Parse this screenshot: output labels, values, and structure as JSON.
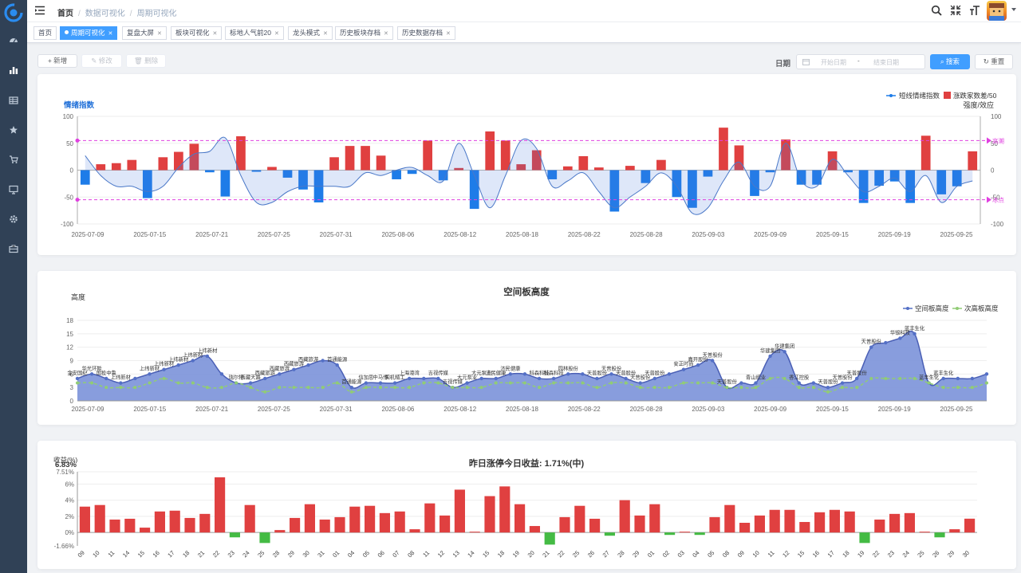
{
  "sidebar": {
    "items": [
      {
        "icon": "dashboard-icon"
      },
      {
        "icon": "bar-chart-icon"
      },
      {
        "icon": "table-icon"
      },
      {
        "icon": "star-icon"
      },
      {
        "icon": "cart-icon"
      },
      {
        "icon": "monitor-icon"
      },
      {
        "icon": "gear-icon"
      },
      {
        "icon": "briefcase-icon"
      }
    ]
  },
  "header": {
    "breadcrumb": [
      "首页",
      "数据可视化",
      "周期可视化"
    ]
  },
  "tabs": [
    {
      "label": "首页",
      "closable": false
    },
    {
      "label": "周期可视化",
      "closable": true,
      "active": true
    },
    {
      "label": "复盘大屏",
      "closable": true
    },
    {
      "label": "板块可视化",
      "closable": true
    },
    {
      "label": "标地人气前20",
      "closable": true
    },
    {
      "label": "龙头模式",
      "closable": true
    },
    {
      "label": "历史板块存档",
      "closable": true
    },
    {
      "label": "历史数据存档",
      "closable": true
    }
  ],
  "toolbar": {
    "add": "新增",
    "edit": "修改",
    "delete": "删除",
    "date_label": "日期",
    "start_placeholder": "开始日期",
    "range_sep": "-",
    "end_placeholder": "结束日期",
    "search": "搜索",
    "reset": "重置"
  },
  "colors": {
    "red": "#e04040",
    "blue": "#1e7ce8",
    "green": "#44bb44",
    "area": "#7b92d9",
    "magenta": "#e040e0"
  },
  "chart_data": [
    {
      "type": "bar+line",
      "ylabel_left": "情绪指数",
      "ylabel_right": "强度/效应",
      "legend": [
        "短线情绪指数",
        "涨跌家数差/50"
      ],
      "legend_position": "top-right",
      "ylim_left": [
        -100,
        100
      ],
      "ylim_right": [
        -100,
        100
      ],
      "yticks_left": [
        100,
        50,
        0,
        -50,
        -100
      ],
      "yticks_right": [
        100,
        50,
        0,
        -50,
        -100
      ],
      "markline_high": {
        "value": 55,
        "label": "高潮"
      },
      "markline_low": {
        "value": -55,
        "label": "冰点"
      },
      "x_ticks": [
        "2025-07-09",
        "2025-07-15",
        "2025-07-21",
        "2025-07-25",
        "2025-07-31",
        "2025-08-06",
        "2025-08-12",
        "2025-08-18",
        "2025-08-22",
        "2025-08-28",
        "2025-09-03",
        "2025-09-09",
        "2025-09-15",
        "2025-09-19",
        "2025-09-25"
      ],
      "bars": [
        -27,
        11,
        13,
        19,
        -52,
        24,
        34,
        49,
        -4,
        -49,
        63,
        -3,
        6,
        -14,
        -36,
        -60,
        24,
        45,
        45,
        27,
        -17,
        -7,
        55,
        -19,
        4,
        -72,
        72,
        55,
        11,
        37,
        -17,
        7,
        26,
        5,
        -77,
        8,
        -24,
        19,
        -50,
        -70,
        -12,
        79,
        46,
        -48,
        -4,
        57,
        -27,
        -27,
        35,
        -4,
        -61,
        -29,
        -21,
        -61,
        64,
        -45,
        -30,
        35
      ],
      "line": [
        27,
        -10,
        -30,
        -30,
        -40,
        -30,
        5,
        30,
        35,
        60,
        -10,
        -60,
        -60,
        -40,
        -30,
        -30,
        -30,
        -30,
        -5,
        -10,
        0,
        5,
        -10,
        -20,
        50,
        -10,
        -70,
        -10,
        55,
        40,
        -30,
        -20,
        -5,
        -40,
        -70,
        -50,
        -30,
        -5,
        -30,
        -80,
        -70,
        -20,
        15,
        -30,
        -30,
        50,
        -20,
        -30,
        20,
        -10,
        -40,
        -30,
        -15,
        -40,
        -10,
        -60,
        -30,
        -20
      ]
    },
    {
      "type": "area+line",
      "title": "空间板高度",
      "ylabel": "高度",
      "legend": [
        "空间板高度",
        "次高板高度"
      ],
      "legend_position": "top-right",
      "ylim": [
        0,
        18
      ],
      "yticks": [
        0,
        3,
        6,
        9,
        12,
        15,
        18
      ],
      "x_ticks": [
        "2025-07-09",
        "2025-07-15",
        "2025-07-21",
        "2025-07-25",
        "2025-07-31",
        "2025-08-06",
        "2025-08-12",
        "2025-08-18",
        "2025-08-22",
        "2025-08-28",
        "2025-09-03",
        "2025-09-09",
        "2025-09-15",
        "2025-09-19",
        "2025-09-25"
      ],
      "height": [
        5,
        6,
        5,
        4,
        5,
        6,
        7,
        8,
        9,
        10,
        6,
        4,
        4,
        5,
        6,
        7,
        8,
        9,
        8,
        3,
        4,
        4,
        4,
        5,
        5,
        5,
        3,
        4,
        5,
        5,
        6,
        6,
        5,
        5,
        6,
        6,
        5,
        6,
        5,
        4,
        5,
        6,
        7,
        8,
        9,
        3,
        4,
        4,
        10,
        11,
        4,
        4,
        3,
        4,
        5,
        12,
        13,
        14,
        15,
        4,
        5,
        5,
        5,
        6
      ],
      "second": [
        4,
        4,
        3,
        3,
        3,
        4,
        5,
        4,
        4,
        3,
        3,
        4,
        3,
        2,
        3,
        3,
        3,
        3,
        4,
        2,
        3,
        3,
        3,
        3,
        4,
        4,
        3,
        3,
        3,
        4,
        4,
        4,
        3,
        4,
        4,
        4,
        3,
        4,
        4,
        3,
        3,
        3,
        4,
        4,
        4,
        3,
        3,
        3,
        5,
        5,
        3,
        3,
        2,
        3,
        3,
        5,
        5,
        5,
        5,
        4,
        3,
        3,
        3,
        4
      ],
      "point_labels": [
        {
          "i": 0,
          "t": "金安国纪"
        },
        {
          "i": 1,
          "t": "华光环能"
        },
        {
          "i": 2,
          "t": "国投中鲁"
        },
        {
          "i": 3,
          "t": "上纬新材"
        },
        {
          "i": 5,
          "t": "上纬新材"
        },
        {
          "i": 6,
          "t": "上纬新材"
        },
        {
          "i": 7,
          "t": "上纬新材"
        },
        {
          "i": 8,
          "t": "上纬新材"
        },
        {
          "i": 9,
          "t": "上纬新材"
        },
        {
          "i": 11,
          "t": "瑞尔特"
        },
        {
          "i": 12,
          "t": "西藏天路"
        },
        {
          "i": 13,
          "t": "西藏旅游"
        },
        {
          "i": 14,
          "t": "西藏旅游"
        },
        {
          "i": 15,
          "t": "西藏旅游"
        },
        {
          "i": 16,
          "t": "西藏旅游"
        },
        {
          "i": 18,
          "t": "首通能源"
        },
        {
          "i": 19,
          "t": "首通能源"
        },
        {
          "i": 20,
          "t": "信加思"
        },
        {
          "i": 21,
          "t": "中马传"
        },
        {
          "i": 22,
          "t": "国机精工"
        },
        {
          "i": 23,
          "t": "上海港湾"
        },
        {
          "i": 25,
          "t": "吉视传媒"
        },
        {
          "i": 26,
          "t": "吉视传媒"
        },
        {
          "i": 27,
          "t": "大元泵业"
        },
        {
          "i": 28,
          "t": "大元泵业"
        },
        {
          "i": 29,
          "t": "济民健康"
        },
        {
          "i": 30,
          "t": "济民健康"
        },
        {
          "i": 32,
          "t": "科森科技"
        },
        {
          "i": 33,
          "t": "科森科技"
        },
        {
          "i": 34,
          "t": "园林股份"
        },
        {
          "i": 36,
          "t": "天普股份"
        },
        {
          "i": 37,
          "t": "天普股份"
        },
        {
          "i": 38,
          "t": "天普股份"
        },
        {
          "i": 39,
          "t": "天普股份"
        },
        {
          "i": 40,
          "t": "天普股份"
        },
        {
          "i": 42,
          "t": "安正时尚"
        },
        {
          "i": 43,
          "t": "嘉开股份"
        },
        {
          "i": 44,
          "t": "天普股份"
        },
        {
          "i": 45,
          "t": "天普股份"
        },
        {
          "i": 47,
          "t": "青山纸业"
        },
        {
          "i": 48,
          "t": "华建集团"
        },
        {
          "i": 49,
          "t": "华建集团"
        },
        {
          "i": 50,
          "t": "香江控股"
        },
        {
          "i": 52,
          "t": "天普股份"
        },
        {
          "i": 53,
          "t": "天普股份"
        },
        {
          "i": 54,
          "t": "天普股份"
        },
        {
          "i": 55,
          "t": "天普股份"
        },
        {
          "i": 57,
          "t": "华银科技"
        },
        {
          "i": 58,
          "t": "蓝丰生化"
        },
        {
          "i": 59,
          "t": "蓝丰生化"
        },
        {
          "i": 60,
          "t": "蓝丰生化"
        }
      ]
    },
    {
      "type": "bar",
      "title": "昨日涨停今日收益: 1.71%(中)",
      "ylabel": "收益(%)",
      "max_label": "6.83%",
      "y_top_label": "7.51%",
      "y_bottom_label": "-1.66%",
      "ylim": [
        -1.66,
        7.51
      ],
      "yticks": [
        6,
        4,
        2,
        0
      ],
      "categories": [
        "09",
        "10",
        "11",
        "14",
        "15",
        "16",
        "17",
        "18",
        "21",
        "22",
        "23",
        "24",
        "25",
        "28",
        "29",
        "30",
        "31",
        "01",
        "04",
        "05",
        "06",
        "07",
        "08",
        "11",
        "12",
        "13",
        "14",
        "15",
        "18",
        "19",
        "20",
        "21",
        "22",
        "25",
        "26",
        "27",
        "28",
        "29",
        "01",
        "02",
        "03",
        "04",
        "05",
        "08",
        "09",
        "10",
        "11",
        "12",
        "15",
        "16",
        "17",
        "18",
        "19",
        "22",
        "23",
        "24",
        "25",
        "26",
        "29",
        "30"
      ],
      "values": [
        3.2,
        3.4,
        1.6,
        1.7,
        0.6,
        2.6,
        2.7,
        1.8,
        2.3,
        6.83,
        -0.6,
        3.4,
        -1.3,
        0.3,
        1.8,
        3.5,
        1.6,
        1.9,
        3.2,
        3.3,
        2.4,
        2.6,
        0.4,
        3.6,
        2.1,
        5.3,
        0.1,
        4.5,
        5.7,
        3.5,
        0.8,
        -1.5,
        1.9,
        3.3,
        1.7,
        -0.4,
        4.0,
        2.1,
        3.5,
        -0.3,
        0.1,
        -0.3,
        1.9,
        3.4,
        1.2,
        2.1,
        2.8,
        2.8,
        1.3,
        2.5,
        2.8,
        2.6,
        -1.3,
        1.6,
        2.3,
        2.4,
        0.1,
        -0.6,
        0.4,
        1.71
      ]
    }
  ]
}
